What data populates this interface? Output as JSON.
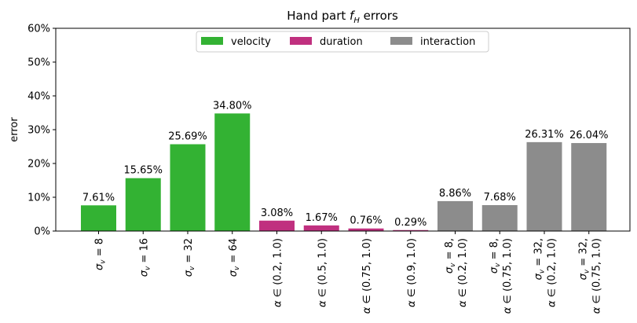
{
  "chart_data": {
    "type": "bar",
    "title": "Hand part f_H errors",
    "title_parts": {
      "prefix": "Hand part ",
      "symbol": "f",
      "subscript": "H",
      "suffix": " errors"
    },
    "ylabel": "error",
    "xlabel": "",
    "ylim": [
      0,
      60
    ],
    "y_unit": "%",
    "yticks": [
      "0%",
      "10%",
      "20%",
      "30%",
      "40%",
      "50%",
      "60%"
    ],
    "ytick_values": [
      0,
      10,
      20,
      30,
      40,
      50,
      60
    ],
    "legend_position": "top-center",
    "grid": false,
    "series": [
      {
        "name": "velocity",
        "color": "#33b233"
      },
      {
        "name": "duration",
        "color": "#c0307f"
      },
      {
        "name": "interaction",
        "color": "#8c8c8c"
      }
    ],
    "categories": [
      "σ_v = 8",
      "σ_v = 16",
      "σ_v = 32",
      "σ_v = 64",
      "α ∈ (0.2, 1.0)",
      "α ∈ (0.5, 1.0)",
      "α ∈ (0.75, 1.0)",
      "α ∈ (0.9, 1.0)",
      "σ_v = 8, α ∈ (0.2, 1.0)",
      "σ_v = 8, α ∈ (0.75, 1.0)",
      "σ_v = 32, α ∈ (0.2, 1.0)",
      "σ_v = 32, α ∈ (0.75, 1.0)"
    ],
    "tick_lines": [
      [
        {
          "sigma": "8"
        }
      ],
      [
        {
          "sigma": "16"
        }
      ],
      [
        {
          "sigma": "32"
        }
      ],
      [
        {
          "sigma": "64"
        }
      ],
      [
        {
          "alpha": "(0.2, 1.0)"
        }
      ],
      [
        {
          "alpha": "(0.5, 1.0)"
        }
      ],
      [
        {
          "alpha": "(0.75, 1.0)"
        }
      ],
      [
        {
          "alpha": "(0.9, 1.0)"
        }
      ],
      [
        {
          "sigma": "8,"
        },
        {
          "alpha": "(0.2, 1.0)"
        }
      ],
      [
        {
          "sigma": "8,"
        },
        {
          "alpha": "(0.75, 1.0)"
        }
      ],
      [
        {
          "sigma": "32,"
        },
        {
          "alpha": "(0.2, 1.0)"
        }
      ],
      [
        {
          "sigma": "32,"
        },
        {
          "alpha": "(0.75, 1.0)"
        }
      ]
    ],
    "values": [
      7.61,
      15.65,
      25.69,
      34.8,
      3.08,
      1.67,
      0.76,
      0.29,
      8.86,
      7.68,
      26.31,
      26.04
    ],
    "labels": [
      "7.61%",
      "15.65%",
      "25.69%",
      "34.80%",
      "3.08%",
      "1.67%",
      "0.76%",
      "0.29%",
      "8.86%",
      "7.68%",
      "26.31%",
      "26.04%"
    ],
    "group": [
      0,
      0,
      0,
      0,
      1,
      1,
      1,
      1,
      2,
      2,
      2,
      2
    ]
  }
}
